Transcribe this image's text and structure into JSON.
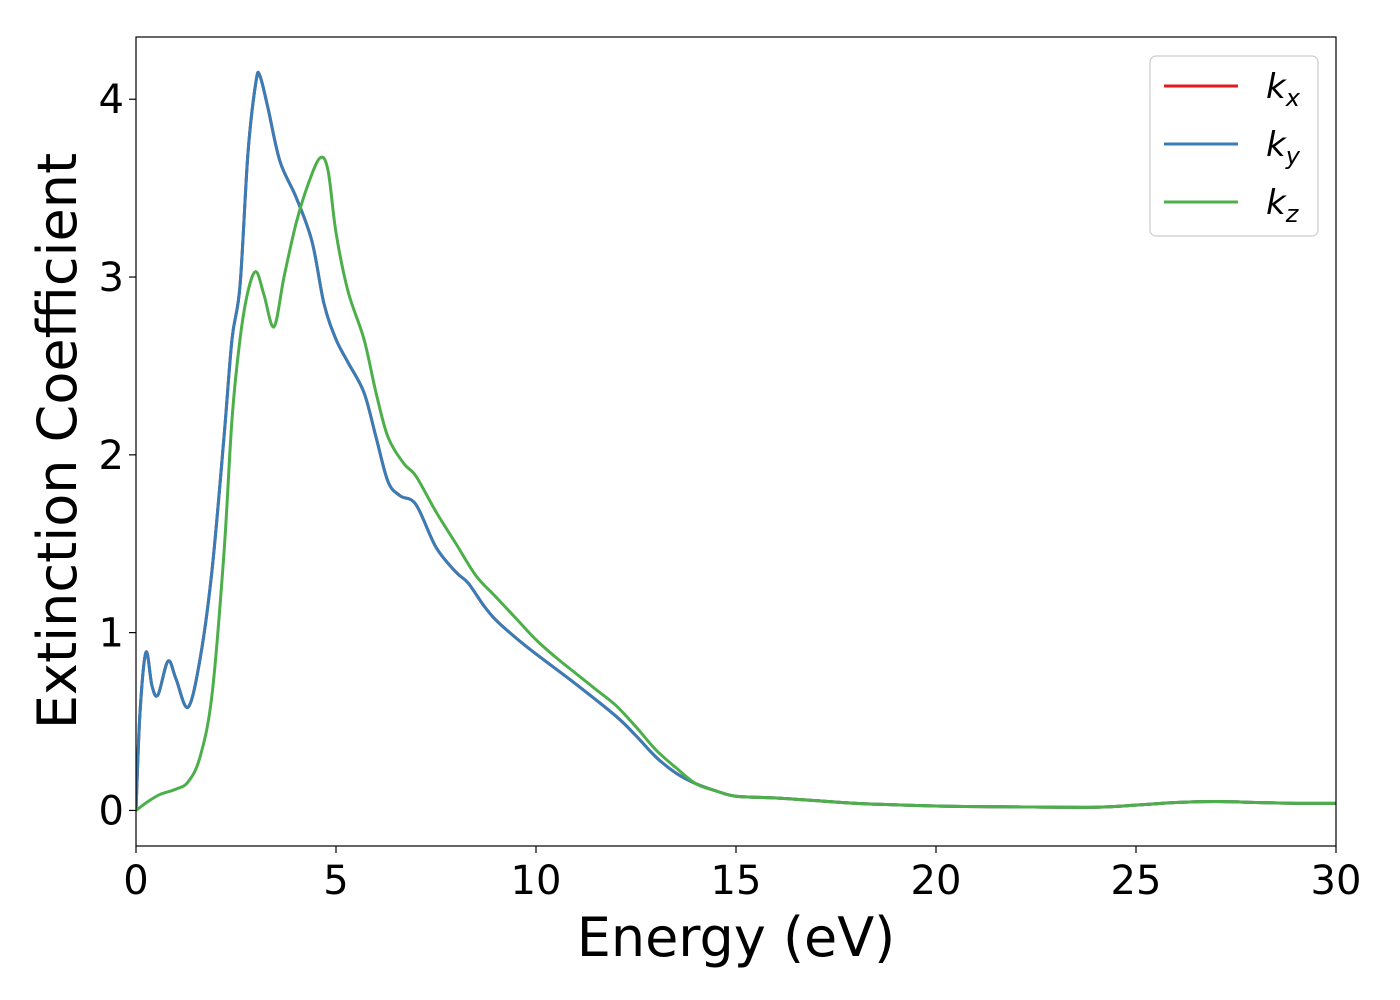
{
  "chart_data": {
    "type": "line",
    "title": "",
    "xlabel": "Energy (eV)",
    "ylabel": "Extinction Coefficient",
    "xlim": [
      0,
      30
    ],
    "ylim": [
      -0.2,
      4.35
    ],
    "xticks": [
      0,
      5,
      10,
      15,
      20,
      25,
      30
    ],
    "yticks": [
      0,
      1,
      2,
      3,
      4
    ],
    "grid": false,
    "legend_position": "top-right",
    "series": [
      {
        "name": "k",
        "subscript": "x",
        "color": "#e41a1c",
        "x": [
          0,
          0.1,
          0.25,
          0.4,
          0.55,
          0.8,
          1.0,
          1.3,
          1.6,
          1.9,
          2.2,
          2.4,
          2.6,
          2.8,
          3.0,
          3.1,
          3.3,
          3.6,
          4.0,
          4.4,
          4.7,
          5.0,
          5.3,
          5.7,
          6.0,
          6.3,
          6.6,
          7.0,
          7.5,
          8.0,
          8.3,
          8.7,
          9.0,
          9.5,
          10.0,
          11.0,
          12.0,
          12.5,
          13.0,
          13.5,
          14.0,
          14.5,
          15.0,
          16.0,
          17.0,
          18.0,
          20.0,
          22.0,
          24.0,
          25.0,
          26.0,
          27.0,
          28.0,
          29.0,
          30.0
        ],
        "y": [
          0.0,
          0.55,
          0.89,
          0.7,
          0.65,
          0.84,
          0.74,
          0.58,
          0.85,
          1.35,
          2.1,
          2.65,
          2.95,
          3.7,
          4.1,
          4.13,
          3.95,
          3.65,
          3.45,
          3.2,
          2.85,
          2.65,
          2.52,
          2.35,
          2.1,
          1.85,
          1.77,
          1.72,
          1.48,
          1.34,
          1.28,
          1.15,
          1.07,
          0.97,
          0.88,
          0.71,
          0.53,
          0.42,
          0.3,
          0.21,
          0.15,
          0.11,
          0.08,
          0.07,
          0.055,
          0.04,
          0.025,
          0.02,
          0.018,
          0.03,
          0.045,
          0.05,
          0.045,
          0.04,
          0.04
        ]
      },
      {
        "name": "k",
        "subscript": "y",
        "color": "#377eb8",
        "x": [
          0,
          0.1,
          0.25,
          0.4,
          0.55,
          0.8,
          1.0,
          1.3,
          1.6,
          1.9,
          2.2,
          2.4,
          2.6,
          2.8,
          3.0,
          3.1,
          3.3,
          3.6,
          4.0,
          4.4,
          4.7,
          5.0,
          5.3,
          5.7,
          6.0,
          6.3,
          6.6,
          7.0,
          7.5,
          8.0,
          8.3,
          8.7,
          9.0,
          9.5,
          10.0,
          11.0,
          12.0,
          12.5,
          13.0,
          13.5,
          14.0,
          14.5,
          15.0,
          16.0,
          17.0,
          18.0,
          20.0,
          22.0,
          24.0,
          25.0,
          26.0,
          27.0,
          28.0,
          29.0,
          30.0
        ],
        "y": [
          0.0,
          0.55,
          0.89,
          0.7,
          0.65,
          0.84,
          0.74,
          0.58,
          0.85,
          1.35,
          2.1,
          2.65,
          2.95,
          3.7,
          4.1,
          4.13,
          3.95,
          3.65,
          3.45,
          3.2,
          2.85,
          2.65,
          2.52,
          2.35,
          2.1,
          1.85,
          1.77,
          1.72,
          1.48,
          1.34,
          1.28,
          1.15,
          1.07,
          0.97,
          0.88,
          0.71,
          0.53,
          0.42,
          0.3,
          0.21,
          0.15,
          0.11,
          0.08,
          0.07,
          0.055,
          0.04,
          0.025,
          0.02,
          0.018,
          0.03,
          0.045,
          0.05,
          0.045,
          0.04,
          0.04
        ]
      },
      {
        "name": "k",
        "subscript": "z",
        "color": "#4daf4a",
        "x": [
          0,
          0.3,
          0.6,
          1.0,
          1.3,
          1.6,
          1.9,
          2.2,
          2.4,
          2.6,
          2.8,
          3.0,
          3.2,
          3.45,
          3.7,
          4.0,
          4.3,
          4.6,
          4.8,
          5.0,
          5.3,
          5.7,
          6.0,
          6.3,
          6.7,
          7.0,
          7.5,
          8.0,
          8.5,
          9.0,
          9.5,
          10.0,
          10.5,
          11.0,
          11.5,
          12.0,
          12.5,
          13.0,
          13.5,
          14.0,
          14.5,
          15.0,
          16.0,
          17.0,
          18.0,
          20.0,
          22.0,
          24.0,
          25.0,
          26.0,
          27.0,
          28.0,
          29.0,
          30.0
        ],
        "y": [
          0.0,
          0.05,
          0.09,
          0.12,
          0.16,
          0.3,
          0.65,
          1.45,
          2.2,
          2.65,
          2.92,
          3.03,
          2.9,
          2.72,
          3.0,
          3.3,
          3.52,
          3.67,
          3.6,
          3.25,
          2.92,
          2.65,
          2.35,
          2.1,
          1.95,
          1.88,
          1.68,
          1.5,
          1.32,
          1.2,
          1.08,
          0.96,
          0.86,
          0.77,
          0.68,
          0.59,
          0.47,
          0.34,
          0.24,
          0.15,
          0.11,
          0.08,
          0.07,
          0.055,
          0.04,
          0.025,
          0.02,
          0.018,
          0.03,
          0.045,
          0.05,
          0.045,
          0.04,
          0.04
        ]
      }
    ]
  }
}
